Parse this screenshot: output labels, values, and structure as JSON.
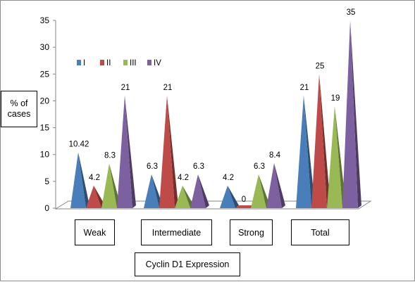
{
  "chart_data": {
    "type": "bar",
    "style": "3d-cone",
    "categories": [
      "Weak",
      "Intermediate",
      "Strong",
      "Total"
    ],
    "series": [
      {
        "name": "I",
        "color": "#4a7ebb",
        "values": [
          10.42,
          6.3,
          4.2,
          21
        ]
      },
      {
        "name": "II",
        "color": "#be4b48",
        "values": [
          4.2,
          21,
          0,
          25
        ]
      },
      {
        "name": "III",
        "color": "#98b954",
        "values": [
          8.3,
          4.2,
          6.3,
          19
        ]
      },
      {
        "name": "IV",
        "color": "#7d60a0",
        "values": [
          21,
          6.3,
          8.4,
          35
        ]
      }
    ],
    "data_labels": [
      [
        "10.42",
        "4.2",
        "8.3",
        "21"
      ],
      [
        "6.3",
        "21",
        "4.2",
        "6.3"
      ],
      [
        "4.2",
        "0",
        "6.3",
        "8.4"
      ],
      [
        "21",
        "25",
        "19",
        "35"
      ]
    ],
    "yticks": [
      0,
      5,
      10,
      15,
      20,
      25,
      30,
      35
    ],
    "ylim": [
      0,
      35
    ],
    "ylabel": "% of cases",
    "xlabel": "Cyclin D1 Expression",
    "legend_position": "top-left",
    "grid": false
  }
}
